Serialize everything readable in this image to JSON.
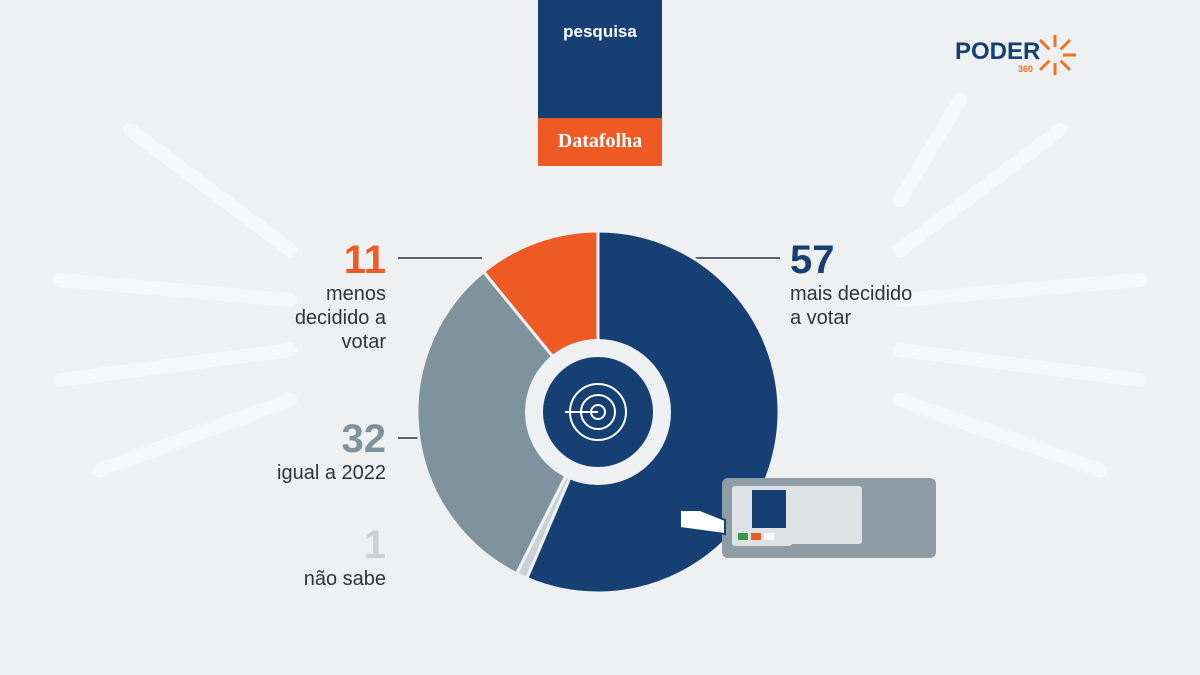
{
  "header": {
    "label": "pesquisa",
    "source": "Datafolha"
  },
  "logo": {
    "name": "PODER",
    "number": "360"
  },
  "chart_data": {
    "type": "pie",
    "categories": [
      "mais decidido a votar",
      "não sabe",
      "igual a 2022",
      "menos decidido a votar"
    ],
    "values": [
      57,
      1,
      32,
      11
    ],
    "colors": [
      "#163f73",
      "#c9d0d6",
      "#7f939f",
      "#ee5a24"
    ]
  }
}
